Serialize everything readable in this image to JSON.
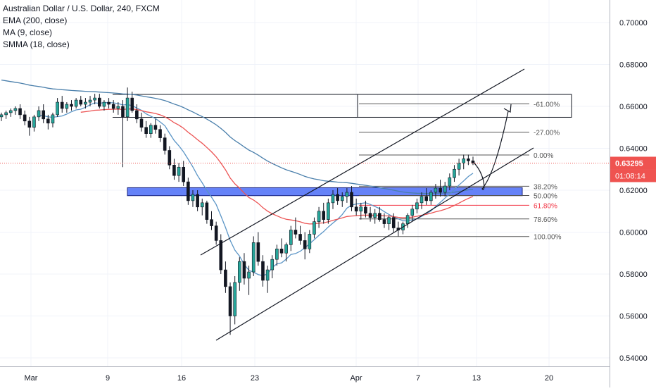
{
  "chart_data": {
    "type": "candlestick",
    "title": "Australian Dollar / U.S. Dollar, 240, FXCM",
    "indicators": [
      "EMA (200, close)",
      "MA (9, close)",
      "SMMA (18, close)"
    ],
    "ylim": [
      0.536,
      0.71
    ],
    "y_ticks": [
      "0.70000",
      "0.68000",
      "0.66000",
      "0.64000",
      "0.62000",
      "0.60000",
      "0.58000",
      "0.56000",
      "0.54000"
    ],
    "x_ticks": [
      "Mar",
      "9",
      "16",
      "23",
      "Apr",
      "7",
      "13",
      "20"
    ],
    "current_price": "0.63295",
    "countdown": "01:08:14",
    "fib_levels": [
      {
        "label": "-61.00%",
        "value": 0.6612
      },
      {
        "label": "-27.00%",
        "value": 0.6477
      },
      {
        "label": "0.00%",
        "value": 0.6368
      },
      {
        "label": "38.20%",
        "value": 0.6219
      },
      {
        "label": "50.00%",
        "value": 0.6175
      },
      {
        "label": "61.80%",
        "value": 0.6128
      },
      {
        "label": "78.60%",
        "value": 0.6063
      },
      {
        "label": "100.00%",
        "value": 0.5979
      }
    ],
    "zones": [
      {
        "name": "upper-resistance",
        "low": 0.6548,
        "high": 0.6657
      },
      {
        "name": "support",
        "low": 0.6174,
        "high": 0.6212
      }
    ],
    "candles": [
      [
        0.655,
        0.657,
        0.653,
        0.656
      ],
      [
        0.656,
        0.658,
        0.654,
        0.657
      ],
      [
        0.657,
        0.659,
        0.655,
        0.658
      ],
      [
        0.658,
        0.66,
        0.656,
        0.659
      ],
      [
        0.659,
        0.661,
        0.654,
        0.656
      ],
      [
        0.656,
        0.658,
        0.651,
        0.653
      ],
      [
        0.653,
        0.655,
        0.646,
        0.65
      ],
      [
        0.65,
        0.656,
        0.648,
        0.655
      ],
      [
        0.655,
        0.66,
        0.653,
        0.658
      ],
      [
        0.658,
        0.661,
        0.652,
        0.654
      ],
      [
        0.654,
        0.656,
        0.649,
        0.652
      ],
      [
        0.652,
        0.657,
        0.65,
        0.656
      ],
      [
        0.656,
        0.664,
        0.655,
        0.662
      ],
      [
        0.662,
        0.665,
        0.657,
        0.659
      ],
      [
        0.659,
        0.662,
        0.657,
        0.661
      ],
      [
        0.661,
        0.663,
        0.658,
        0.66
      ],
      [
        0.66,
        0.664,
        0.659,
        0.663
      ],
      [
        0.663,
        0.665,
        0.66,
        0.661
      ],
      [
        0.661,
        0.664,
        0.659,
        0.662
      ],
      [
        0.662,
        0.665,
        0.66,
        0.663
      ],
      [
        0.663,
        0.666,
        0.661,
        0.664
      ],
      [
        0.664,
        0.666,
        0.659,
        0.66
      ],
      [
        0.66,
        0.663,
        0.658,
        0.662
      ],
      [
        0.662,
        0.664,
        0.659,
        0.661
      ],
      [
        0.661,
        0.663,
        0.657,
        0.659
      ],
      [
        0.659,
        0.662,
        0.656,
        0.66
      ],
      [
        0.66,
        0.663,
        0.631,
        0.655
      ],
      [
        0.655,
        0.669,
        0.653,
        0.664
      ],
      [
        0.664,
        0.667,
        0.657,
        0.658
      ],
      [
        0.658,
        0.661,
        0.652,
        0.654
      ],
      [
        0.654,
        0.657,
        0.648,
        0.65
      ],
      [
        0.65,
        0.653,
        0.645,
        0.647
      ],
      [
        0.647,
        0.652,
        0.645,
        0.651
      ],
      [
        0.651,
        0.654,
        0.647,
        0.649
      ],
      [
        0.649,
        0.651,
        0.643,
        0.645
      ],
      [
        0.645,
        0.647,
        0.637,
        0.639
      ],
      [
        0.639,
        0.641,
        0.63,
        0.632
      ],
      [
        0.632,
        0.635,
        0.625,
        0.627
      ],
      [
        0.627,
        0.633,
        0.624,
        0.631
      ],
      [
        0.631,
        0.634,
        0.622,
        0.624
      ],
      [
        0.624,
        0.626,
        0.613,
        0.615
      ],
      [
        0.615,
        0.62,
        0.612,
        0.618
      ],
      [
        0.618,
        0.62,
        0.61,
        0.612
      ],
      [
        0.612,
        0.616,
        0.608,
        0.614
      ],
      [
        0.614,
        0.615,
        0.604,
        0.606
      ],
      [
        0.606,
        0.61,
        0.601,
        0.603
      ],
      [
        0.603,
        0.605,
        0.594,
        0.596
      ],
      [
        0.596,
        0.599,
        0.58,
        0.582
      ],
      [
        0.582,
        0.586,
        0.571,
        0.574
      ],
      [
        0.574,
        0.576,
        0.551,
        0.56
      ],
      [
        0.56,
        0.579,
        0.556,
        0.576
      ],
      [
        0.576,
        0.588,
        0.572,
        0.586
      ],
      [
        0.586,
        0.59,
        0.575,
        0.578
      ],
      [
        0.578,
        0.584,
        0.57,
        0.581
      ],
      [
        0.581,
        0.598,
        0.579,
        0.595
      ],
      [
        0.595,
        0.6,
        0.584,
        0.586
      ],
      [
        0.586,
        0.589,
        0.574,
        0.577
      ],
      [
        0.577,
        0.584,
        0.571,
        0.582
      ],
      [
        0.582,
        0.589,
        0.578,
        0.587
      ],
      [
        0.587,
        0.594,
        0.584,
        0.592
      ],
      [
        0.592,
        0.597,
        0.588,
        0.59
      ],
      [
        0.59,
        0.595,
        0.586,
        0.594
      ],
      [
        0.594,
        0.603,
        0.591,
        0.601
      ],
      [
        0.601,
        0.607,
        0.597,
        0.599
      ],
      [
        0.599,
        0.603,
        0.594,
        0.596
      ],
      [
        0.596,
        0.6,
        0.587,
        0.592
      ],
      [
        0.592,
        0.601,
        0.59,
        0.599
      ],
      [
        0.599,
        0.607,
        0.597,
        0.605
      ],
      [
        0.605,
        0.612,
        0.602,
        0.61
      ],
      [
        0.61,
        0.614,
        0.604,
        0.606
      ],
      [
        0.606,
        0.616,
        0.604,
        0.614
      ],
      [
        0.614,
        0.62,
        0.611,
        0.618
      ],
      [
        0.618,
        0.621,
        0.613,
        0.615
      ],
      [
        0.615,
        0.619,
        0.612,
        0.617
      ],
      [
        0.617,
        0.621,
        0.614,
        0.619
      ],
      [
        0.619,
        0.622,
        0.61,
        0.612
      ],
      [
        0.612,
        0.616,
        0.608,
        0.61
      ],
      [
        0.61,
        0.614,
        0.606,
        0.612
      ],
      [
        0.612,
        0.615,
        0.607,
        0.609
      ],
      [
        0.609,
        0.612,
        0.605,
        0.607
      ],
      [
        0.607,
        0.611,
        0.604,
        0.609
      ],
      [
        0.609,
        0.612,
        0.605,
        0.606
      ],
      [
        0.606,
        0.609,
        0.602,
        0.604
      ],
      [
        0.604,
        0.608,
        0.601,
        0.607
      ],
      [
        0.607,
        0.609,
        0.6,
        0.602
      ],
      [
        0.602,
        0.605,
        0.598,
        0.601
      ],
      [
        0.601,
        0.605,
        0.599,
        0.604
      ],
      [
        0.604,
        0.609,
        0.602,
        0.608
      ],
      [
        0.608,
        0.613,
        0.605,
        0.611
      ],
      [
        0.611,
        0.616,
        0.609,
        0.614
      ],
      [
        0.614,
        0.619,
        0.611,
        0.617
      ],
      [
        0.617,
        0.621,
        0.613,
        0.615
      ],
      [
        0.615,
        0.62,
        0.613,
        0.619
      ],
      [
        0.619,
        0.623,
        0.616,
        0.621
      ],
      [
        0.621,
        0.625,
        0.617,
        0.619
      ],
      [
        0.619,
        0.624,
        0.617,
        0.622
      ],
      [
        0.622,
        0.628,
        0.62,
        0.626
      ],
      [
        0.626,
        0.632,
        0.624,
        0.63
      ],
      [
        0.63,
        0.635,
        0.627,
        0.633
      ],
      [
        0.633,
        0.637,
        0.63,
        0.635
      ],
      [
        0.635,
        0.637,
        0.632,
        0.634
      ],
      [
        0.634,
        0.636,
        0.632,
        0.633
      ]
    ],
    "series": [
      {
        "name": "EMA (200, close)",
        "color": "#4a7fab"
      },
      {
        "name": "MA (9, close)",
        "color": "#5b95c6"
      },
      {
        "name": "SMMA (18, close)",
        "color": "#ec5454"
      }
    ]
  }
}
